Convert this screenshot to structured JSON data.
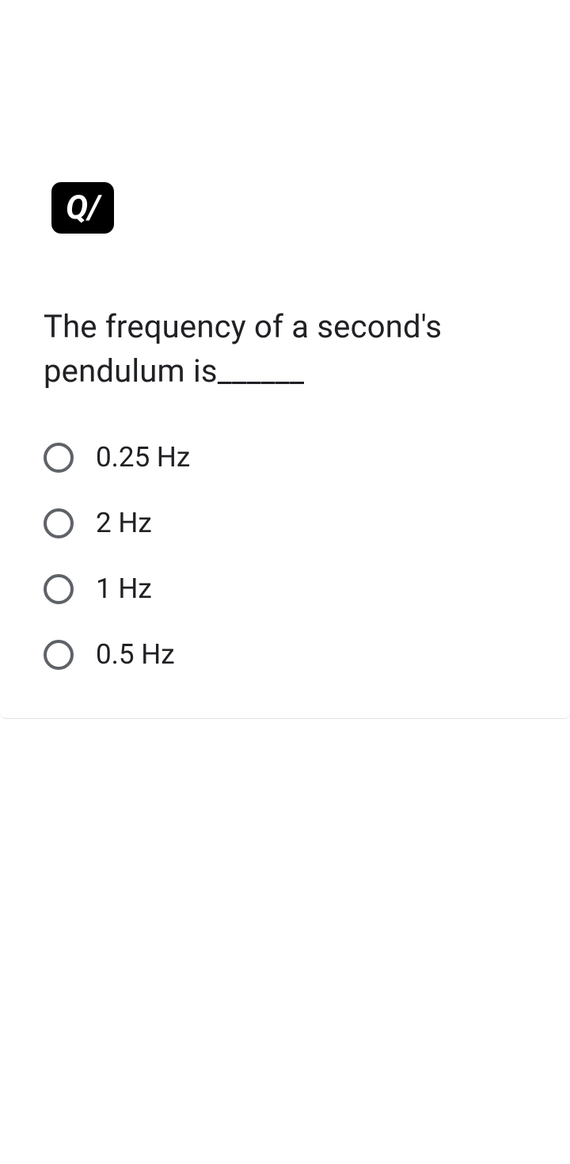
{
  "badge": {
    "text": "Q/",
    "background_color": "#000000",
    "text_color": "#ffffff"
  },
  "question": {
    "text": "The frequency of a second's pendulum is______"
  },
  "options": [
    {
      "label": "0.25 Hz",
      "selected": false
    },
    {
      "label": "2 Hz",
      "selected": false
    },
    {
      "label": "1 Hz",
      "selected": false
    },
    {
      "label": "0.5 Hz",
      "selected": false
    }
  ],
  "colors": {
    "background": "#ffffff",
    "text": "#202124",
    "radio_border": "#5f6368",
    "card_border": "#e0e0e0"
  }
}
